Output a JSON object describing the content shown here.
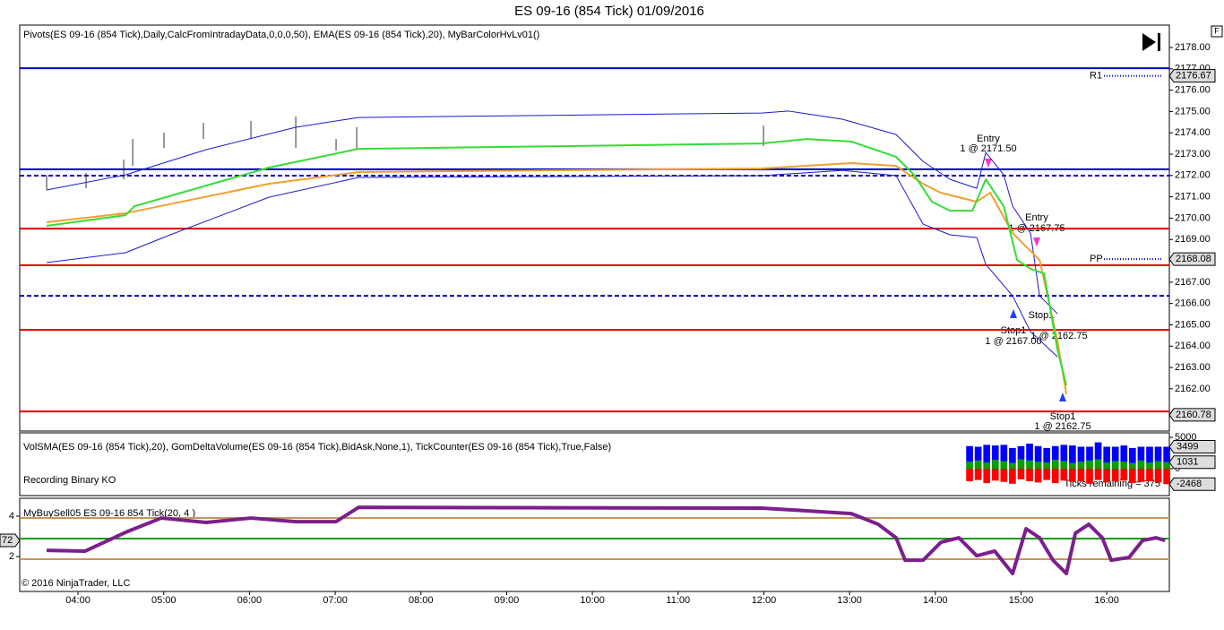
{
  "title": "ES 09-16 (854 Tick)  01/09/2016",
  "copyright": "© 2016 NinjaTrader, LLC",
  "chart_data": [
    {
      "type": "line",
      "indicator_label": "Pivots(ES 09-16 (854 Tick),Daily,CalcFromIntradayData,0,0,0,50), EMA(ES 09-16 (854 Tick),20), MyBarColorHvLv01()",
      "xlim": [
        3.32,
        16.73
      ],
      "ylim": [
        2160.02,
        2179.05
      ],
      "yticks": [
        {
          "value": 2162,
          "label": "2162.00"
        },
        {
          "value": 2163,
          "label": "2163.00"
        },
        {
          "value": 2164,
          "label": "2164.00"
        },
        {
          "value": 2165,
          "label": "2165.00"
        },
        {
          "value": 2166,
          "label": "2166.00"
        },
        {
          "value": 2167,
          "label": "2167.00"
        },
        {
          "value": 2168,
          "label": "2168.00"
        },
        {
          "value": 2169,
          "label": "2169.00"
        },
        {
          "value": 2170,
          "label": "2170.00"
        },
        {
          "value": 2171,
          "label": "2171.00"
        },
        {
          "value": 2172,
          "label": "2172.00"
        },
        {
          "value": 2173,
          "label": "2173.00"
        },
        {
          "value": 2174,
          "label": "2174.00"
        },
        {
          "value": 2175,
          "label": "2175.00"
        },
        {
          "value": 2176,
          "label": "2176.00"
        },
        {
          "value": 2177,
          "label": "2177.00"
        },
        {
          "value": 2178,
          "label": "2178.00"
        }
      ],
      "levels": [
        {
          "value": 2177.03,
          "color": "#0000cc",
          "dash": false
        },
        {
          "value": 2172.29,
          "color": "#0000cc",
          "dash": false
        },
        {
          "value": 2171.99,
          "color": "#0000cc",
          "dash": true
        },
        {
          "value": 2166.36,
          "color": "#0000cc",
          "dash": true
        },
        {
          "value": 2169.51,
          "color": "#e00000",
          "dash": false
        },
        {
          "value": 2167.79,
          "color": "#e00000",
          "dash": false
        },
        {
          "value": 2164.76,
          "color": "#e00000",
          "dash": false
        },
        {
          "value": 2160.94,
          "color": "#e00000",
          "dash": false
        }
      ],
      "pivots": [
        {
          "name": "R1",
          "value": 2176.67
        },
        {
          "name": "PP",
          "value": 2168.08
        }
      ],
      "last_price": 2160.78,
      "series": [
        {
          "color": "#1a1acc",
          "width": 1,
          "x": [
            3.634,
            4.554,
            5.495,
            6.54,
            7.272,
            11.975,
            12.289,
            12.916,
            13.543,
            13.857,
            14.171,
            14.484,
            14.589,
            14.798,
            14.902,
            15.111,
            15.216,
            15.425
          ],
          "values": [
            2171.32,
            2172.03,
            2173.21,
            2174.26,
            2174.72,
            2174.93,
            2175.02,
            2174.64,
            2173.92,
            2172.66,
            2171.82,
            2171.4,
            2173.08,
            2172.03,
            2170.56,
            2169.3,
            2166.36,
            2165.52
          ]
        },
        {
          "color": "#1a1acc",
          "width": 1,
          "x": [
            3.634,
            4.554,
            5.077,
            6.226,
            7.272,
            11.975,
            12.916,
            13.543,
            13.857,
            14.171,
            14.484,
            14.589,
            14.902,
            15.111,
            15.425
          ],
          "values": [
            2167.92,
            2168.38,
            2169.22,
            2170.98,
            2171.91,
            2171.99,
            2172.24,
            2171.99,
            2169.72,
            2169.22,
            2169.09,
            2167.83,
            2166.36,
            2164.68,
            2163.5
          ]
        },
        {
          "color": "#f0a030",
          "width": 2,
          "x": [
            3.634,
            4.554,
            6.226,
            7.272,
            11.975,
            13.021,
            13.543,
            13.857,
            14.066,
            14.484,
            14.641,
            14.902,
            15.216,
            15.425,
            15.529
          ],
          "values": [
            2169.81,
            2170.23,
            2171.61,
            2172.16,
            2172.33,
            2172.58,
            2172.45,
            2171.61,
            2171.19,
            2170.77,
            2171.19,
            2169.3,
            2168.04,
            2164.26,
            2161.74
          ]
        },
        {
          "color": "#33dd33",
          "width": 2,
          "x": [
            3.634,
            4.554,
            4.659,
            6.226,
            7.272,
            11.975,
            12.498,
            13.021,
            13.543,
            13.752,
            13.961,
            14.171,
            14.432,
            14.589,
            14.798,
            14.954,
            15.111,
            15.268,
            15.425,
            15.529
          ],
          "values": [
            2169.64,
            2170.14,
            2170.56,
            2172.37,
            2173.25,
            2173.5,
            2173.71,
            2173.59,
            2172.87,
            2172.03,
            2170.77,
            2170.35,
            2170.35,
            2171.82,
            2170.56,
            2168.04,
            2167.62,
            2167.41,
            2163.84,
            2162.16
          ]
        }
      ],
      "bars": {
        "x": [
          3.634,
          4.094,
          4.533,
          4.638,
          5.003,
          5.463,
          6.017,
          6.54,
          7.01,
          7.251,
          11.996
        ],
        "high": [
          2172.03,
          2172.12,
          2172.75,
          2173.71,
          2174.01,
          2174.47,
          2174.55,
          2174.76,
          2173.71,
          2174.26,
          2174.34
        ],
        "low": [
          2171.32,
          2171.4,
          2171.82,
          2172.45,
          2173.29,
          2173.71,
          2173.71,
          2173.29,
          2173.17,
          2173.21,
          2173.38
        ]
      },
      "annotations": [
        "Entry",
        "1 @ 2171.50",
        "Entry",
        "1 @ 2167.75",
        "Stop1",
        "1 @ 2167.00",
        "Stop1",
        "1 @ 2162.75",
        "Stop1",
        "1 @ 2162.75"
      ]
    },
    {
      "type": "bar",
      "indicator_label": "VolSMA(ES 09-16 (854 Tick),20), GomDeltaVolume(ES 09-16 (854 Tick),BidAsk,None,1), TickCounter(ES 09-16 (854 Tick),True,False)",
      "note": "Recording Binary KO",
      "status": "Ticks remaining = 375",
      "xlim": [
        3.32,
        16.73
      ],
      "ylim": [
        -4286,
        5714
      ],
      "yticks": [
        0,
        5000
      ],
      "tags": [
        3499,
        1031,
        -2468
      ],
      "x": [
        14.4,
        14.5,
        14.6,
        14.7,
        14.8,
        14.9,
        15.0,
        15.1,
        15.2,
        15.3,
        15.4,
        15.5,
        15.6,
        15.7,
        15.8,
        15.9,
        16.0,
        16.1,
        16.2,
        16.3,
        16.4,
        16.5,
        16.6,
        16.7
      ],
      "series": [
        {
          "color": "#00a000",
          "values": [
            1100,
            1300,
            1000,
            1400,
            1200,
            900,
            1500,
            1300,
            1100,
            1000,
            1400,
            1200,
            900,
            1100,
            1300,
            1500,
            1000,
            1200,
            1100,
            900,
            1300,
            1000,
            1200,
            1031
          ]
        },
        {
          "color": "#0000ff",
          "values": [
            2500,
            2200,
            2800,
            2300,
            2600,
            2400,
            2100,
            2700,
            2500,
            2300,
            2200,
            2600,
            2800,
            2400,
            2200,
            2700,
            2500,
            2300,
            2600,
            2400,
            2200,
            2500,
            2300,
            2468
          ]
        },
        {
          "color": "#ff0000",
          "values": [
            -2000,
            -1800,
            -2300,
            -1900,
            -2100,
            -2400,
            -1700,
            -2000,
            -2200,
            -1800,
            -2300,
            -1900,
            -2100,
            -2000,
            -2400,
            -1800,
            -2200,
            -2000,
            -1900,
            -2300,
            -2100,
            -2000,
            -2200,
            -2468
          ]
        }
      ]
    },
    {
      "type": "line",
      "indicator_label": "MyBuySell05 ES 09-16 854 Tick(20, 4 )",
      "xlim": [
        3.32,
        16.73
      ],
      "ylim": [
        0.27,
        4.89
      ],
      "yticks": [
        2,
        4
      ],
      "xticks": [
        {
          "value": 4,
          "label": "04:00"
        },
        {
          "value": 5,
          "label": "05:00"
        },
        {
          "value": 6,
          "label": "06:00"
        },
        {
          "value": 7,
          "label": "07:00"
        },
        {
          "value": 8,
          "label": "08:00"
        },
        {
          "value": 9,
          "label": "09:00"
        },
        {
          "value": 10,
          "label": "10:00"
        },
        {
          "value": 11,
          "label": "11:00"
        },
        {
          "value": 12,
          "label": "12:00"
        },
        {
          "value": 13,
          "label": "13:00"
        },
        {
          "value": 14,
          "label": "14:00"
        },
        {
          "value": 15,
          "label": "15:00"
        },
        {
          "value": 16,
          "label": "16:00"
        }
      ],
      "levels": [
        {
          "value": 3.91,
          "color": "#c8965a",
          "dash": false
        },
        {
          "value": 2.89,
          "color": "#00a000",
          "dash": false
        },
        {
          "value": 1.87,
          "color": "#c8965a",
          "dash": false
        }
      ],
      "tag": {
        "value": 2.8,
        "label": "72"
      },
      "series": [
        {
          "color": "#7b1f8c",
          "width": 4,
          "x": [
            3.634,
            4.084,
            4.554,
            4.972,
            5.495,
            6.017,
            6.54,
            7.01,
            7.272,
            11.975,
            12.498,
            13.021,
            13.334,
            13.543,
            13.648,
            13.857,
            14.066,
            14.275,
            14.484,
            14.693,
            14.902,
            15.059,
            15.216,
            15.373,
            15.529,
            15.634,
            15.791,
            15.948,
            16.052,
            16.261,
            16.418,
            16.575,
            16.68
          ],
          "values": [
            2.31,
            2.27,
            3.2,
            3.91,
            3.69,
            3.91,
            3.73,
            3.73,
            4.44,
            4.4,
            4.27,
            4.13,
            3.6,
            2.93,
            1.82,
            1.82,
            2.71,
            2.93,
            2.04,
            2.27,
            1.16,
            3.38,
            2.93,
            1.82,
            1.16,
            3.16,
            3.6,
            2.93,
            1.82,
            1.96,
            2.8,
            2.93,
            2.8
          ]
        }
      ]
    }
  ]
}
